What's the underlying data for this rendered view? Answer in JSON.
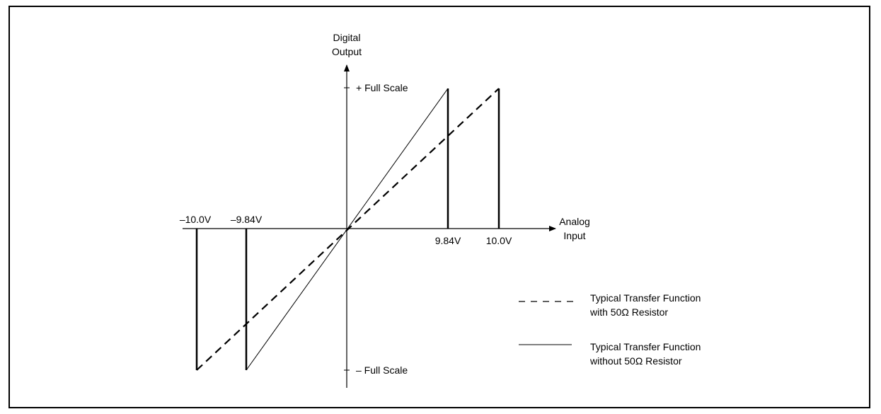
{
  "diagram": {
    "y_axis_label": [
      "Digital",
      "Output"
    ],
    "x_axis_label": [
      "Analog",
      "Input"
    ],
    "plus_full_scale": "+ Full Scale",
    "minus_full_scale": "– Full Scale",
    "x_ticks": {
      "neg_10": "–10.0V",
      "neg_984": "–9.84V",
      "pos_984": "9.84V",
      "pos_10": "10.0V"
    },
    "legend": {
      "dashed": [
        "Typical Transfer Function",
        "with 50Ω Resistor"
      ],
      "solid": [
        "Typical Transfer Function",
        "without 50Ω Resistor"
      ]
    }
  }
}
